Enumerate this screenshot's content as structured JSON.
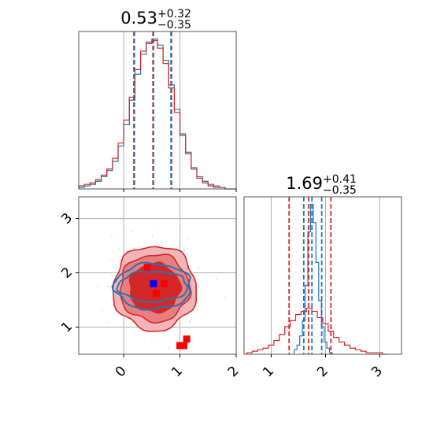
{
  "chart_data": {
    "type": "corner",
    "colors": {
      "series_a": "#1f77b4",
      "series_b": "#d62728",
      "points_blue": "#0000ff",
      "points_red": "#ff0000"
    },
    "grid": true,
    "panels": {
      "hist_param1": {
        "type": "histogram",
        "title": {
          "median": "0.53",
          "plus": "+0.32",
          "minus": "−0.35"
        },
        "xlim": [
          -0.8,
          2.0
        ],
        "xticks": [
          0,
          1,
          2
        ],
        "quantile_lines": {
          "series_a": [
            0.18,
            0.53,
            0.84
          ],
          "series_b": [
            0.19,
            0.52,
            0.85
          ]
        },
        "series": [
          {
            "color": "#1f77b4",
            "x": [
              -0.75,
              -0.65,
              -0.55,
              -0.45,
              -0.35,
              -0.25,
              -0.15,
              -0.05,
              0.05,
              0.15,
              0.25,
              0.35,
              0.45,
              0.55,
              0.65,
              0.75,
              0.85,
              0.95,
              1.05,
              1.15,
              1.25,
              1.35,
              1.45,
              1.55,
              1.65,
              1.75,
              1.85,
              1.95
            ],
            "values": [
              1,
              2,
              3,
              5,
              8,
              12,
              18,
              28,
              42,
              58,
              75,
              88,
              96,
              98,
              94,
              84,
              68,
              52,
              36,
              24,
              14,
              8,
              5,
              3,
              2,
              1,
              0,
              0
            ]
          },
          {
            "color": "#d62728",
            "x": [
              -0.75,
              -0.65,
              -0.55,
              -0.45,
              -0.35,
              -0.25,
              -0.15,
              -0.05,
              0.05,
              0.15,
              0.25,
              0.35,
              0.45,
              0.55,
              0.65,
              0.75,
              0.85,
              0.95,
              1.05,
              1.15,
              1.25,
              1.35,
              1.45,
              1.55,
              1.65,
              1.75,
              1.85,
              1.95
            ],
            "values": [
              2,
              3,
              4,
              6,
              9,
              13,
              20,
              30,
              45,
              60,
              78,
              90,
              95,
              97,
              92,
              82,
              66,
              50,
              35,
              23,
              13,
              7,
              4,
              2,
              1,
              1,
              0,
              0
            ]
          }
        ]
      },
      "hist_param2": {
        "type": "histogram",
        "title": {
          "median": "1.69",
          "plus": "+0.41",
          "minus": "−0.35"
        },
        "xlim": [
          0.5,
          3.4
        ],
        "xticks": [
          1,
          2,
          3
        ],
        "quantile_lines": {
          "series_a": [
            1.6,
            1.75,
            1.93
          ],
          "series_b": [
            1.33,
            1.69,
            2.1
          ]
        },
        "series": [
          {
            "color": "#1f77b4",
            "x": [
              1.45,
              1.5,
              1.55,
              1.6,
              1.65,
              1.7,
              1.75,
              1.8,
              1.85,
              1.9,
              1.95,
              2.0,
              2.05,
              2.1
            ],
            "values": [
              3,
              6,
              12,
              22,
              45,
              80,
              98,
              86,
              60,
              35,
              18,
              8,
              4,
              1
            ]
          },
          {
            "color": "#d62728",
            "x": [
              0.6,
              0.7,
              0.8,
              0.9,
              1.0,
              1.1,
              1.2,
              1.3,
              1.4,
              1.5,
              1.6,
              1.7,
              1.8,
              1.9,
              2.0,
              2.1,
              2.2,
              2.3,
              2.4,
              2.5,
              2.6,
              2.7,
              2.8,
              2.9,
              3.0,
              3.1
            ],
            "values": [
              1,
              2,
              3,
              4,
              6,
              9,
              13,
              18,
              22,
              26,
              28,
              30,
              28,
              24,
              20,
              15,
              11,
              8,
              6,
              4,
              3,
              2,
              1,
              1,
              1,
              0
            ]
          }
        ]
      },
      "scatter_2d": {
        "type": "contour_scatter",
        "xlim": [
          -0.8,
          2.0
        ],
        "ylim": [
          0.5,
          3.4
        ],
        "xticks": [
          0,
          1,
          2
        ],
        "yticks": [
          1,
          2,
          3
        ],
        "series_a_contour_radii": [
          [
            0.62,
            0.28
          ],
          [
            0.68,
            0.42
          ]
        ],
        "series_a_center": [
          0.52,
          1.75
        ],
        "series_b_contour_radii": [
          [
            0.45,
            0.45
          ],
          [
            0.62,
            0.62
          ],
          [
            0.74,
            0.78
          ]
        ],
        "series_b_center": [
          0.55,
          1.72
        ],
        "points": [
          {
            "x": 0.53,
            "y": 1.8,
            "color": "#0000ff"
          },
          {
            "x": 0.42,
            "y": 2.1,
            "color": "#ff0000"
          },
          {
            "x": 0.72,
            "y": 1.8,
            "color": "#ff0000"
          },
          {
            "x": 0.58,
            "y": 1.62,
            "color": "#ff0000"
          },
          {
            "x": 1.12,
            "y": 0.78,
            "color": "#ff0000"
          },
          {
            "x": 1.0,
            "y": 0.66,
            "color": "#ff0000"
          },
          {
            "x": 1.07,
            "y": 0.66,
            "color": "#ff0000"
          }
        ]
      }
    }
  }
}
